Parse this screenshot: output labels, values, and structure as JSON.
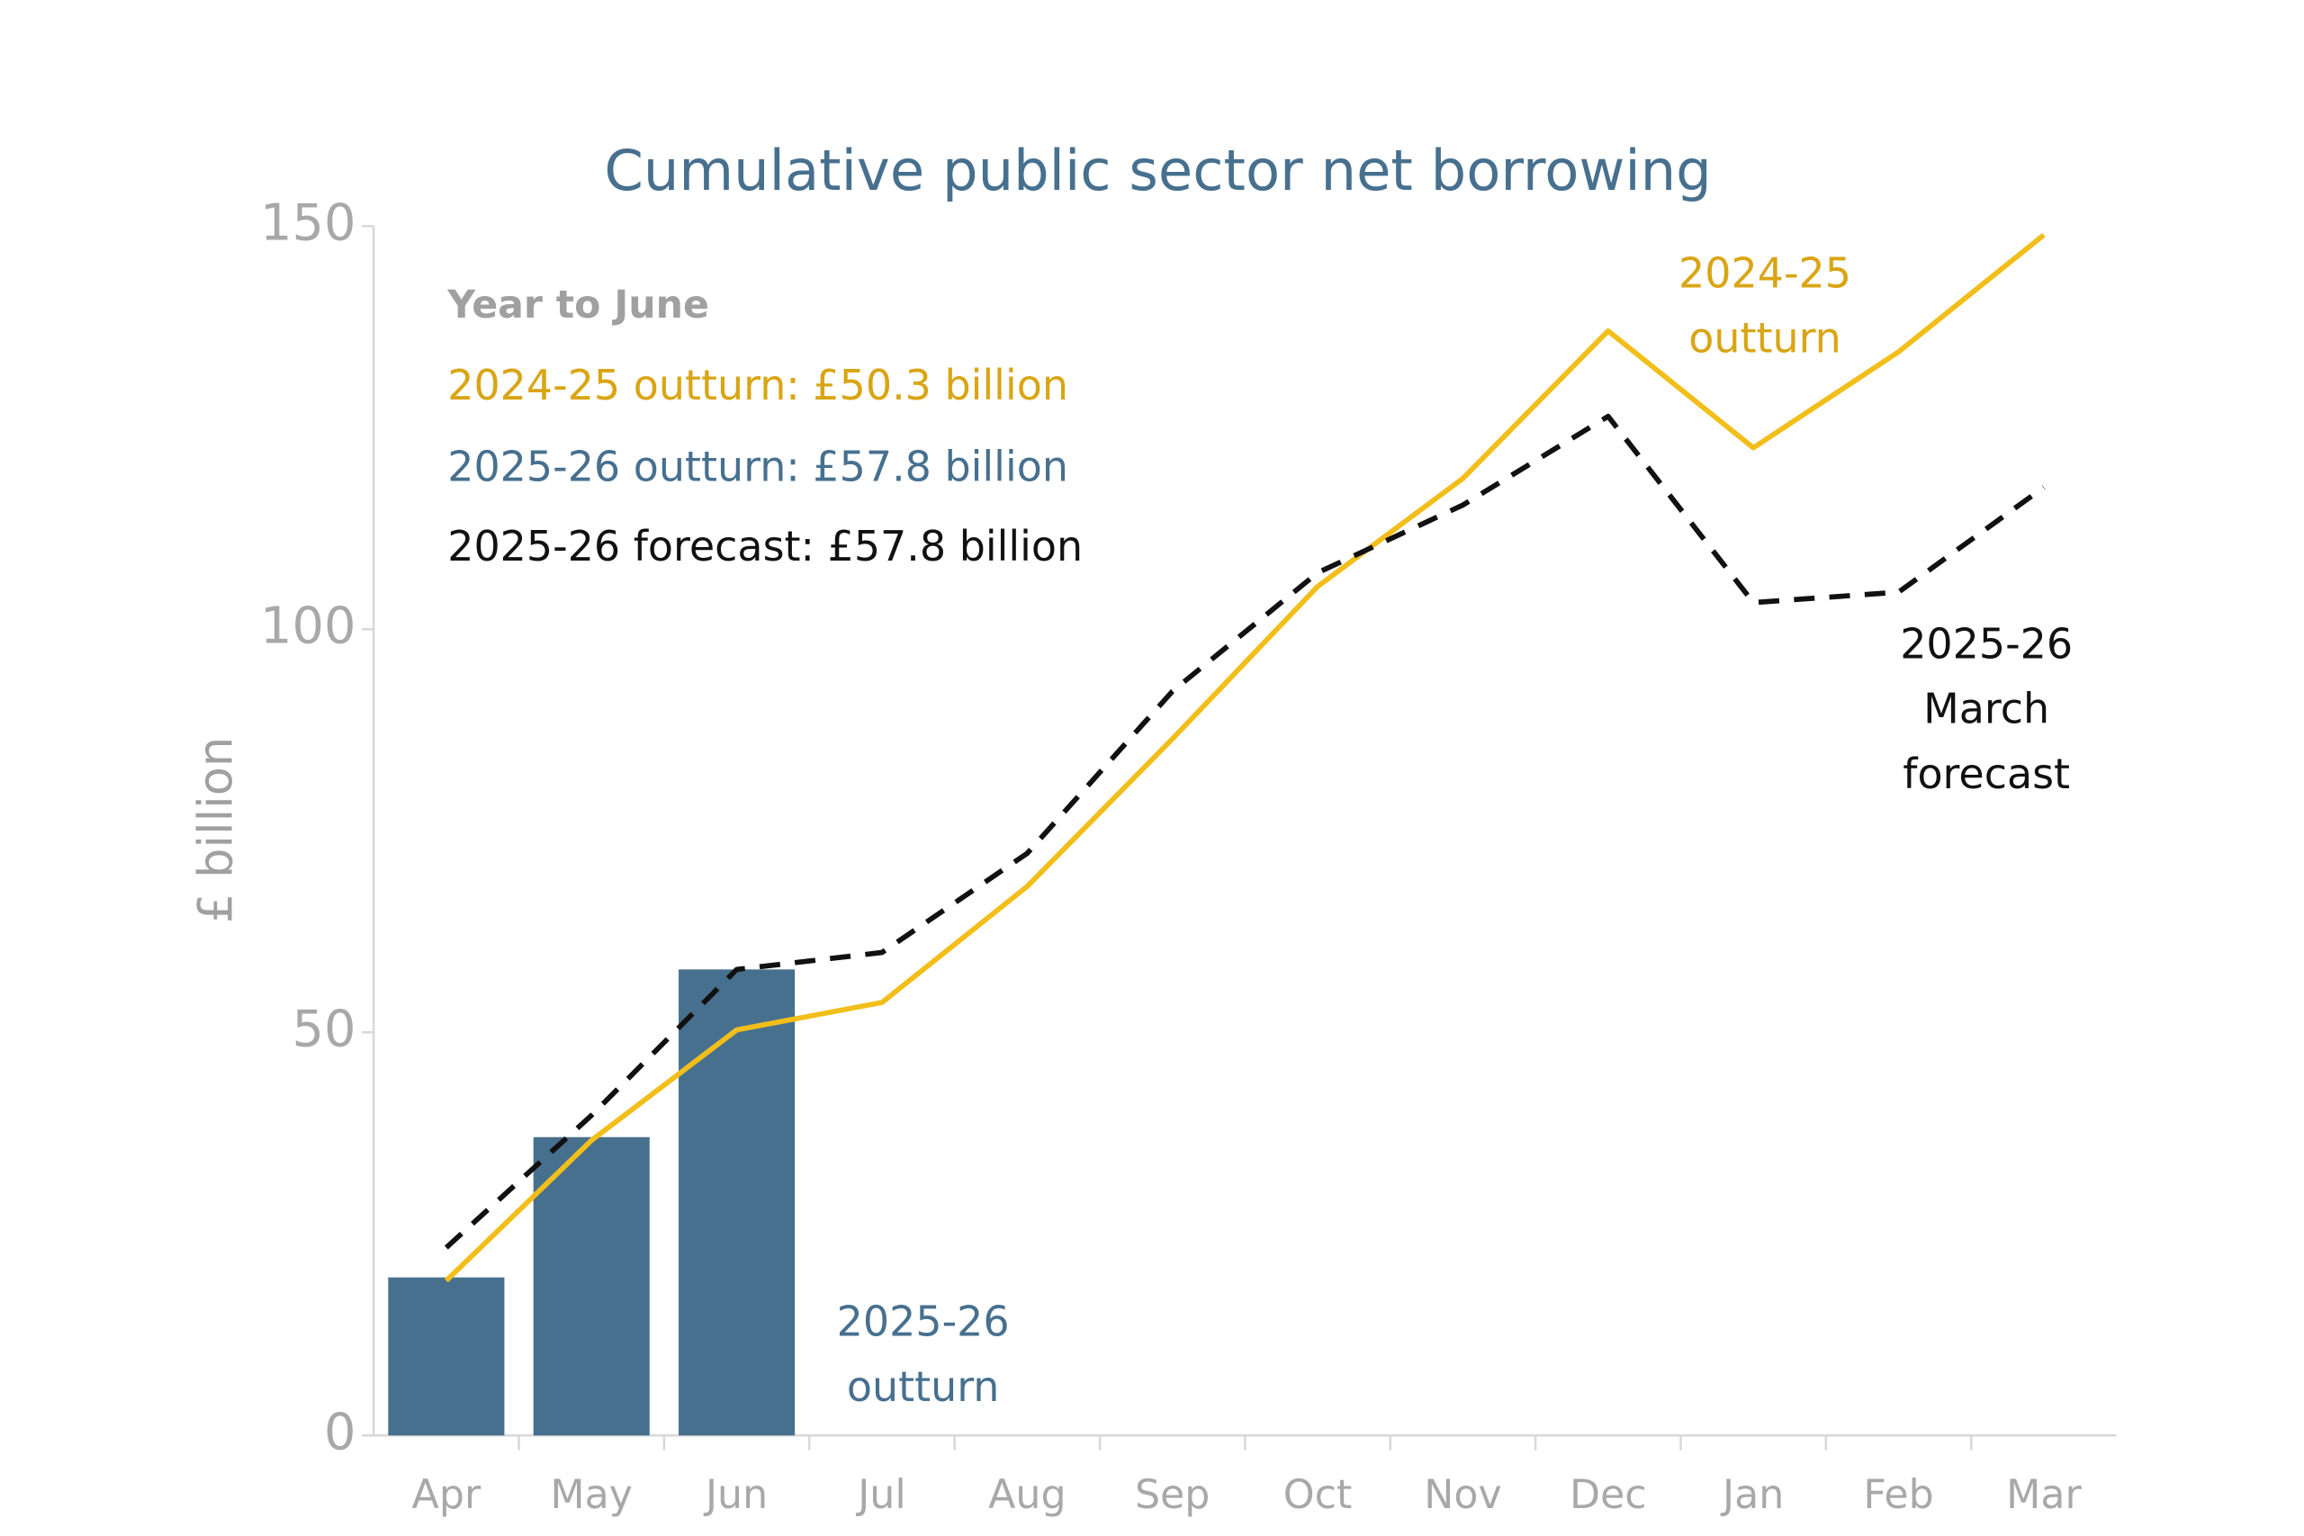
{
  "chart_data": {
    "type": "bar-line",
    "title": "Cumulative public sector net borrowing",
    "y_label": "£ billion",
    "categories": [
      "Apr",
      "May",
      "Jun",
      "Jul",
      "Aug",
      "Sep",
      "Oct",
      "Nov",
      "Dec",
      "Jan",
      "Feb",
      "Mar"
    ],
    "ylim": [
      0,
      150
    ],
    "yticks": [
      0,
      50,
      100,
      150
    ],
    "series": [
      {
        "kind": "bar",
        "color": "#47708f",
        "values": [
          19.6,
          37.0,
          57.8,
          null,
          null,
          null,
          null,
          null,
          null,
          null,
          null,
          null
        ]
      },
      {
        "kind": "line",
        "color": "#f2be1a",
        "values": [
          19.2,
          36.6,
          50.3,
          53.7,
          68.1,
          86.4,
          105.3,
          118.7,
          137.0,
          122.5,
          134.4,
          148.9
        ]
      },
      {
        "kind": "dashed-line",
        "color": "#111111",
        "values": [
          23.3,
          39.7,
          57.8,
          59.9,
          72.2,
          92.3,
          107.0,
          115.4,
          126.4,
          103.3,
          104.6,
          117.6
        ]
      }
    ],
    "annotations": [
      {
        "lines": [
          "Year to June"
        ],
        "color": "#a0a0a0",
        "bold": true
      },
      {
        "lines": [
          "2024-25 outturn: £50.3 billion"
        ],
        "color": "#d9a514"
      },
      {
        "lines": [
          "2025-26 outturn: £57.8 billion"
        ],
        "color": "#47708f"
      },
      {
        "lines": [
          "2025-26 forecast: £57.8 billion"
        ],
        "color": "#111111"
      },
      {
        "lines": [
          "2024-25",
          "outturn"
        ],
        "color": "#d9a514"
      },
      {
        "lines": [
          "2025-26",
          "March",
          "forecast"
        ],
        "color": "#111111"
      },
      {
        "lines": [
          "2025-26",
          "outturn"
        ],
        "color": "#47708f"
      }
    ]
  }
}
